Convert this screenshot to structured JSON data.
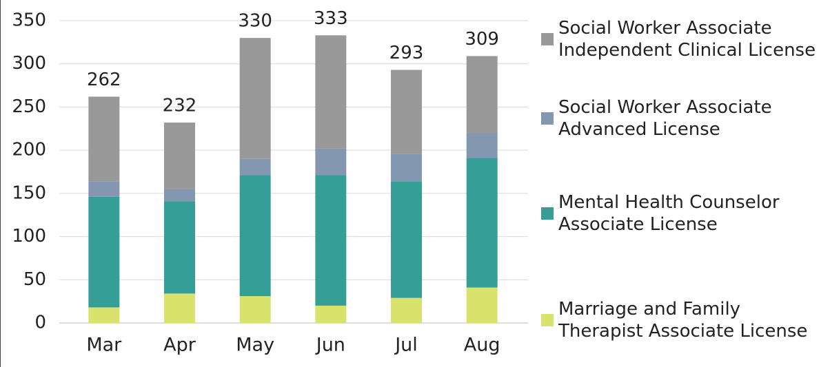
{
  "chart_data": {
    "type": "bar",
    "stacked": true,
    "categories": [
      "Mar",
      "Apr",
      "May",
      "Jun",
      "Jul",
      "Aug"
    ],
    "series": [
      {
        "name": "Marriage and Family Therapist Associate License",
        "color": "#d9e26c",
        "values": [
          18,
          34,
          31,
          20,
          29,
          41
        ]
      },
      {
        "name": "Mental Health Counselor Associate License",
        "color": "#359e96",
        "values": [
          128,
          107,
          140,
          151,
          135,
          150
        ]
      },
      {
        "name": "Social Worker Associate Advanced License",
        "color": "#8497b0",
        "values": [
          18,
          14,
          19,
          31,
          32,
          29
        ]
      },
      {
        "name": "Social Worker Associate Independent Clinical License",
        "color": "#999999",
        "values": [
          98,
          77,
          140,
          131,
          97,
          89
        ]
      }
    ],
    "totals": [
      262,
      232,
      330,
      333,
      293,
      309
    ],
    "ylim": [
      0,
      350
    ],
    "yticks": [
      0,
      50,
      100,
      150,
      200,
      250,
      300,
      350
    ],
    "grid": true
  }
}
